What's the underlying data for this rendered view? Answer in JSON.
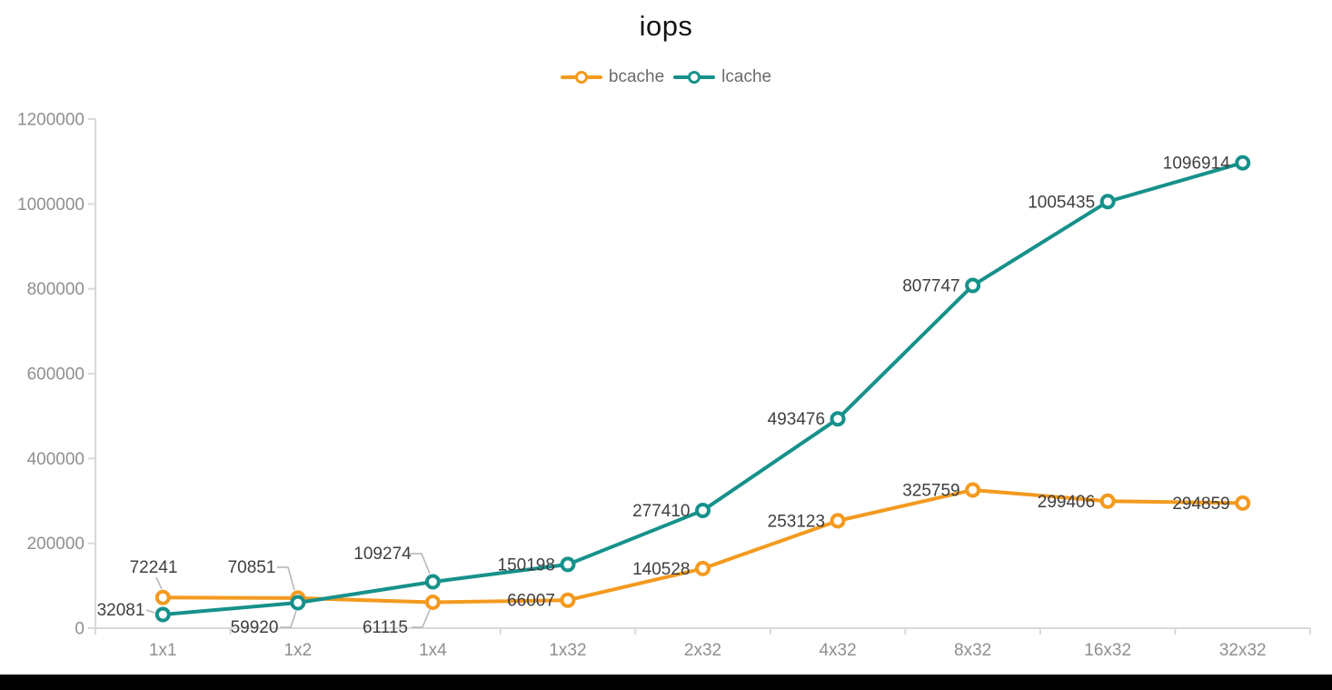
{
  "page": {
    "background": "#FFFFFF",
    "bottom_bar_color": "#000000"
  },
  "chart_data": {
    "type": "line",
    "title": "iops",
    "categories": [
      "1x1",
      "1x2",
      "1x4",
      "1x32",
      "2x32",
      "4x32",
      "8x32",
      "16x32",
      "32x32"
    ],
    "series": [
      {
        "name": "bcache",
        "color": "#F39A1F",
        "values": [
          72241,
          70851,
          61115,
          66007,
          140528,
          253123,
          325759,
          299406,
          294859
        ]
      },
      {
        "name": "lcache",
        "color": "#16918B",
        "values": [
          32081,
          59920,
          109274,
          150198,
          277410,
          493476,
          807747,
          1005435,
          1096914
        ]
      }
    ],
    "ylim": [
      0,
      1200000
    ],
    "y_tick_labels": [
      "0",
      "200000",
      "400000",
      "600000",
      "800000",
      "1000000",
      "1200000"
    ],
    "xlabel": "",
    "ylabel": "",
    "grid": false,
    "legend_position": "top-center",
    "data_labels": true,
    "axis_color": "#D9D9D9",
    "tick_label_color": "#8F8F8F",
    "data_label_color": "#3F3F3F",
    "legend_text_color": "#6B6B6B",
    "leader_line_color": "#B3B3B3",
    "title_color": "#141414"
  }
}
